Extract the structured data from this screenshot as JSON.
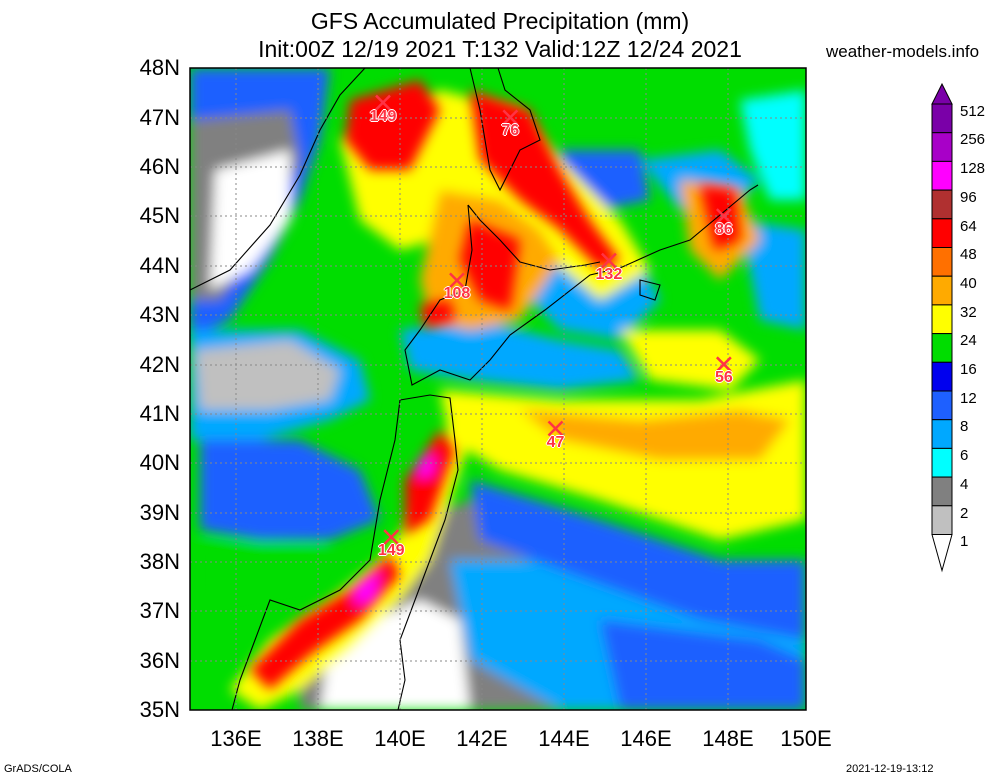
{
  "header": {
    "title": "GFS Accumulated Precipitation (mm)",
    "subtitle": "Init:00Z 12/19 2021 T:132 Valid:12Z 12/24 2021",
    "site": "weather-models.info"
  },
  "axes": {
    "lat_labels": [
      "48N",
      "47N",
      "46N",
      "45N",
      "44N",
      "43N",
      "42N",
      "41N",
      "40N",
      "39N",
      "38N",
      "37N",
      "36N",
      "35N"
    ],
    "lon_labels": [
      "136E",
      "138E",
      "140E",
      "142E",
      "144E",
      "146E",
      "148E",
      "150E"
    ]
  },
  "legend": {
    "levels": [
      "512",
      "256",
      "128",
      "96",
      "64",
      "48",
      "40",
      "32",
      "24",
      "16",
      "12",
      "8",
      "6",
      "4",
      "2",
      "1"
    ],
    "colors": [
      "#7a00a8",
      "#a800c8",
      "#ff00ff",
      "#b03030",
      "#ff0000",
      "#ff7000",
      "#ffaa00",
      "#ffff00",
      "#00dd00",
      "#0000ee",
      "#1e60ff",
      "#00a8ff",
      "#00ffff",
      "#808080",
      "#c0c0c0",
      "#ffffff"
    ]
  },
  "markers": [
    {
      "value": "149",
      "lon": 139.7,
      "lat": 47.3
    },
    {
      "value": "76",
      "lon": 142.8,
      "lat": 47.0
    },
    {
      "value": "86",
      "lon": 148.0,
      "lat": 45.0
    },
    {
      "value": "132",
      "lon": 145.2,
      "lat": 44.1
    },
    {
      "value": "108",
      "lon": 141.5,
      "lat": 43.7
    },
    {
      "value": "56",
      "lon": 148.0,
      "lat": 42.0
    },
    {
      "value": "47",
      "lon": 143.9,
      "lat": 40.7
    },
    {
      "value": "149",
      "lon": 139.9,
      "lat": 38.5
    }
  ],
  "footer": {
    "left": "GrADS/COLA",
    "right": "2021-12-19-13:12"
  }
}
